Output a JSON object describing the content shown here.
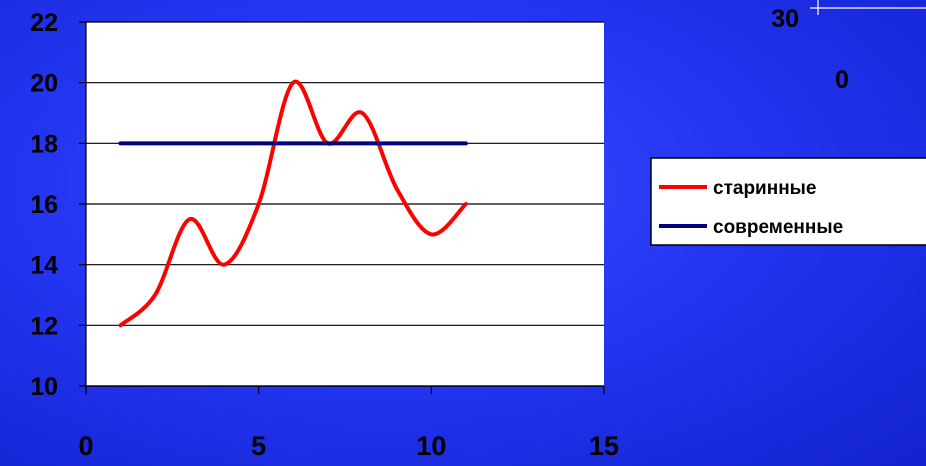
{
  "colors": {
    "background": "#2436f2",
    "plot_area": "#ffffff",
    "axis": "#000000",
    "series_old": "#ff0000",
    "series_modern": "#000080"
  },
  "chart_data": {
    "type": "line",
    "title": "",
    "xlabel": "",
    "ylabel": "",
    "xlim": [
      0,
      15
    ],
    "ylim": [
      10,
      22
    ],
    "x_ticks": [
      "0",
      "5",
      "10",
      "15"
    ],
    "y_ticks": [
      "10",
      "12",
      "14",
      "16",
      "18",
      "20",
      "22"
    ],
    "grid": "horizontal",
    "legend_position": "right",
    "smoothed": true,
    "series": [
      {
        "name": "старинные",
        "color": "#ff0000",
        "x": [
          1,
          2,
          3,
          4,
          5,
          6,
          7,
          8,
          9,
          10,
          11
        ],
        "y": [
          12,
          13,
          15.5,
          14,
          16,
          20,
          18,
          19,
          16.5,
          15,
          16
        ]
      },
      {
        "name": "современные",
        "color": "#000080",
        "x": [
          1,
          11
        ],
        "y": [
          18,
          18
        ]
      }
    ]
  },
  "partial_chart": {
    "tick_top": "30",
    "tick_bottom": "0"
  }
}
